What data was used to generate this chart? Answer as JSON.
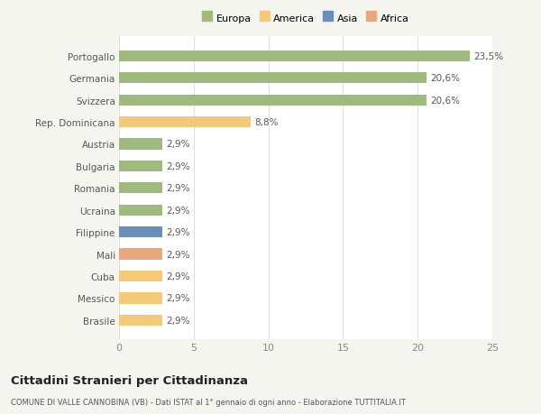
{
  "categories": [
    "Brasile",
    "Messico",
    "Cuba",
    "Mali",
    "Filippine",
    "Ucraina",
    "Romania",
    "Bulgaria",
    "Austria",
    "Rep. Dominicana",
    "Svizzera",
    "Germania",
    "Portogallo"
  ],
  "values": [
    2.9,
    2.9,
    2.9,
    2.9,
    2.9,
    2.9,
    2.9,
    2.9,
    2.9,
    8.8,
    20.6,
    20.6,
    23.5
  ],
  "colors": [
    "#f5c97a",
    "#f5c97a",
    "#f5c97a",
    "#e8a87c",
    "#6b8fbb",
    "#9fba7c",
    "#9fba7c",
    "#9fba7c",
    "#9fba7c",
    "#f5c97a",
    "#9fba7c",
    "#9fba7c",
    "#9fba7c"
  ],
  "labels": [
    "2,9%",
    "2,9%",
    "2,9%",
    "2,9%",
    "2,9%",
    "2,9%",
    "2,9%",
    "2,9%",
    "2,9%",
    "8,8%",
    "20,6%",
    "20,6%",
    "23,5%"
  ],
  "xlim": [
    0,
    25
  ],
  "xticks": [
    0,
    5,
    10,
    15,
    20,
    25
  ],
  "legend_labels": [
    "Europa",
    "America",
    "Asia",
    "Africa"
  ],
  "legend_colors": [
    "#9fba7c",
    "#f5c97a",
    "#6b8fbb",
    "#e8a87c"
  ],
  "title": "Cittadini Stranieri per Cittadinanza",
  "subtitle": "COMUNE DI VALLE CANNOBINA (VB) - Dati ISTAT al 1° gennaio di ogni anno - Elaborazione TUTTITALIA.IT",
  "bg_color": "#f5f5f0",
  "bar_bg_color": "#ffffff"
}
